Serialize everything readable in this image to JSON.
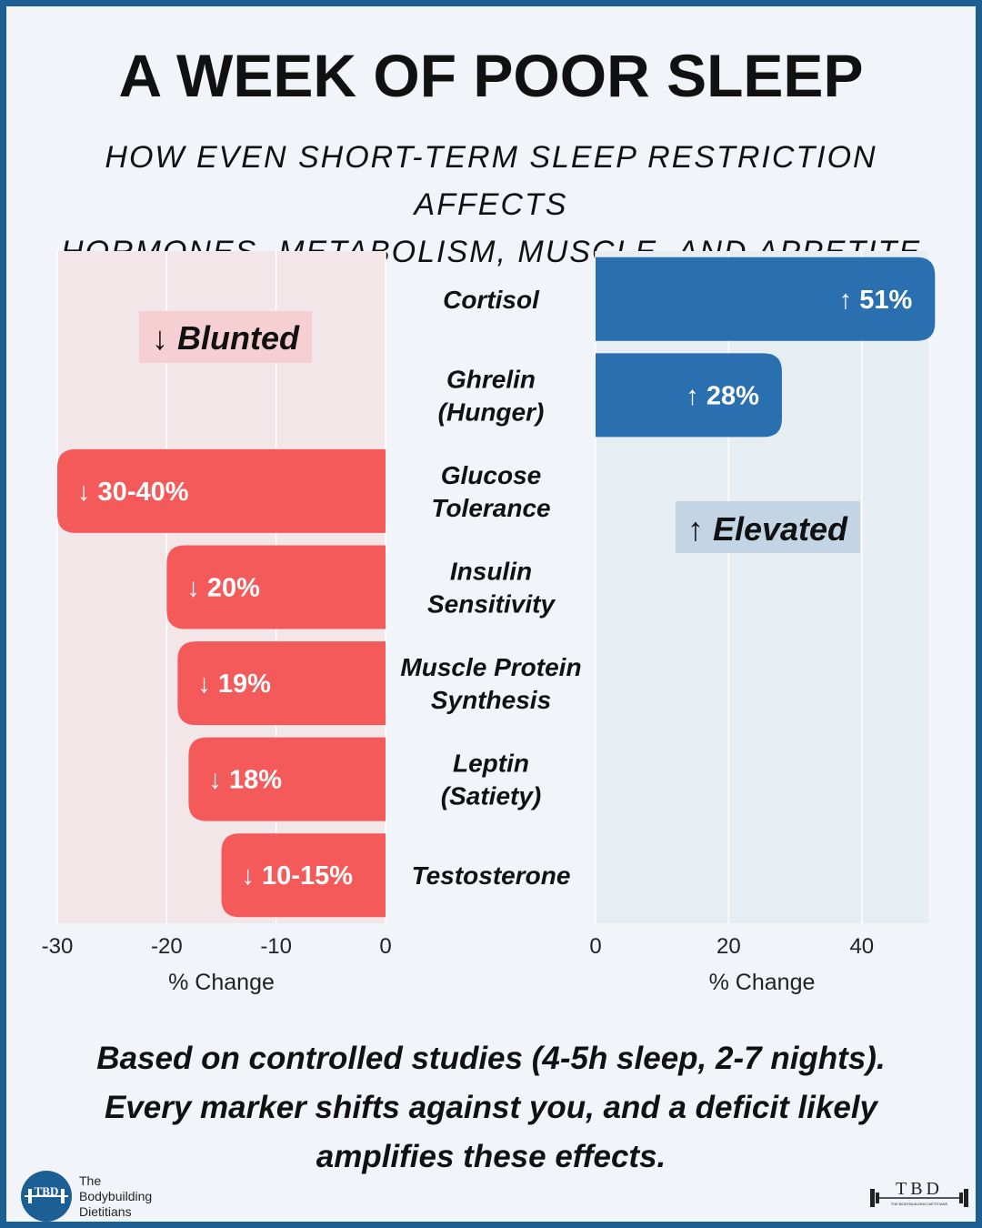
{
  "title": "A WEEK OF POOR SLEEP",
  "subtitle_lines": [
    "HOW EVEN SHORT-TERM SLEEP RESTRICTION AFFECTS",
    "HORMONES, METABOLISM, MUSCLE, AND APPETITE"
  ],
  "caption_lines": [
    "Based on controlled studies (4-5h sleep, 2-7 nights).",
    "Every marker shifts against you, and a deficit likely",
    "amplifies these effects."
  ],
  "brand": {
    "lines": [
      "The",
      "Bodybuilding",
      "Dietitians"
    ],
    "logo_left_text": "TBD",
    "logo_right_text": "TBD",
    "logo_right_subtext": "THE BODYBUILDING DIETITIANS"
  },
  "colors": {
    "decrease": "#f55a5a",
    "increase": "#2a70b0",
    "decrease_bg": "#f2e6e8",
    "increase_bg": "#e6edf3",
    "border": "#1b5f94"
  },
  "chart_data": {
    "type": "bar",
    "orientation": "horizontal",
    "categories": [
      [
        "Cortisol"
      ],
      [
        "Ghrelin",
        "(Hunger)"
      ],
      [
        "Glucose",
        "Tolerance"
      ],
      [
        "Insulin",
        "Sensitivity"
      ],
      [
        "Muscle Protein",
        "Synthesis"
      ],
      [
        "Leptin",
        "(Satiety)"
      ],
      [
        "Testosterone"
      ]
    ],
    "left_panel": {
      "badge": "↓ Blunted",
      "xlim": [
        -30,
        0
      ],
      "ticks": [
        "-30",
        "-20",
        "-10",
        "0"
      ],
      "xlabel": "% Change",
      "bars": [
        {
          "category_index": 2,
          "value": -30,
          "label": "↓ 30-40%"
        },
        {
          "category_index": 3,
          "value": -20,
          "label": "↓ 20%"
        },
        {
          "category_index": 4,
          "value": -19,
          "label": "↓ 19%"
        },
        {
          "category_index": 5,
          "value": -18,
          "label": "↓ 18%"
        },
        {
          "category_index": 6,
          "value": -15,
          "label": "↓ 10-15%"
        }
      ]
    },
    "right_panel": {
      "badge": "↑ Elevated",
      "xlim": [
        0,
        50
      ],
      "ticks": [
        "0",
        "20",
        "40"
      ],
      "xlabel": "% Change",
      "bars": [
        {
          "category_index": 0,
          "value": 51,
          "label": "↑ 51%"
        },
        {
          "category_index": 1,
          "value": 28,
          "label": "↑ 28%"
        }
      ]
    }
  }
}
